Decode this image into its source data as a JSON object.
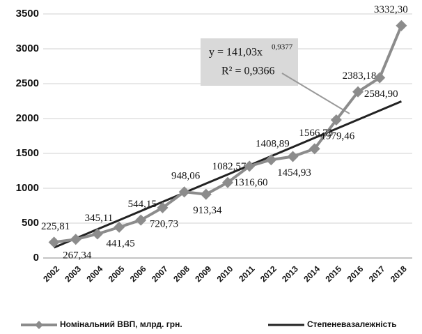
{
  "chart_data": {
    "type": "line",
    "categories": [
      "2002",
      "2003",
      "2004",
      "2005",
      "2006",
      "2007",
      "2008",
      "2009",
      "2010",
      "2011",
      "2012",
      "2013",
      "2014",
      "2015",
      "2016",
      "2017",
      "2018"
    ],
    "series": [
      {
        "name": "Номінальний ВВП, млрд. грн.",
        "color": "#8c8c8c",
        "values": [
          225.81,
          267.34,
          345.11,
          441.45,
          544.15,
          720.73,
          948.06,
          913.34,
          1082.57,
          1316.6,
          1408.89,
          1454.93,
          1566.73,
          1979.46,
          2383.18,
          2584.9,
          3332.3
        ],
        "value_labels": [
          "225,81",
          "267,34",
          "345,11",
          "441,45",
          "544,15",
          "720,73",
          "948,06",
          "913,34",
          "1082,57",
          "1316,60",
          "1408,89",
          "1454,93",
          "1566,73",
          "1979,46",
          "2383,18",
          "2584,90",
          "3332,30"
        ]
      },
      {
        "name": "Степеневазалежність",
        "color": "#222222",
        "values": [
          150,
          281,
          412,
          543,
          674,
          805,
          936,
          1067,
          1198,
          1329,
          1460,
          1591,
          1722,
          1853,
          1984,
          2115,
          2246
        ]
      }
    ],
    "annotations": [
      "y = 141,03x",
      "0,9377",
      "R² = 0,9366"
    ],
    "ylim": [
      0,
      3500
    ],
    "yticks": [
      0,
      500,
      1000,
      1500,
      2000,
      2500,
      3000,
      3500
    ],
    "grid": true
  }
}
